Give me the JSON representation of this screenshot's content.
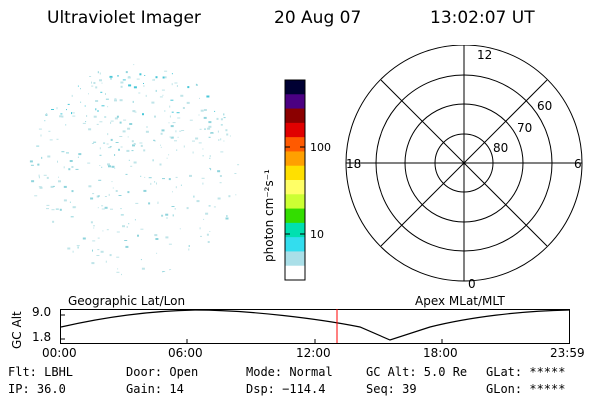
{
  "header": {
    "instrument": "Ultraviolet Imager",
    "date": "20 Aug 07",
    "time": "13:02:07 UT"
  },
  "colorbar": {
    "label": "photon cm⁻²s⁻¹",
    "tick_labels": [
      "100",
      "10"
    ],
    "colors": [
      "#000033",
      "#4b0082",
      "#8b0000",
      "#e00000",
      "#ff5a00",
      "#ffa000",
      "#ffe000",
      "#ffff66",
      "#ccff33",
      "#33dd00",
      "#00e0b0",
      "#33ddee",
      "#aadfe8",
      "#ffffff"
    ]
  },
  "polar_grid": {
    "mlt_labels": [
      "12",
      "18",
      "6",
      "0"
    ],
    "mlat_labels": [
      "60",
      "70",
      "80"
    ]
  },
  "timeline": {
    "left_label": "Geographic Lat/Lon",
    "right_label": "Apex MLat/MLT",
    "y_axis_title": "GC Alt",
    "y_ticks": [
      "9.0",
      "1.8"
    ],
    "x_ticks": [
      "00:00",
      "06:00",
      "12:00",
      "18:00",
      "23:59"
    ],
    "current_marker_color": "#ff0000"
  },
  "status": {
    "flt": "Flt: LBHL",
    "ip": "IP: 36.0",
    "door": "Door: Open",
    "gain": "Gain: 14",
    "mode": "Mode: Normal",
    "dsp": "Dsp: −114.4",
    "gc_alt": "GC Alt: 5.0 Re",
    "seq": "Seq: 39",
    "glat": "GLat: *****",
    "glon": "GLon: *****"
  },
  "colors": {
    "speckle_light": "#bfe4e8",
    "speckle_mid": "#8fd4dc",
    "speckle_cyan": "#49c7d8"
  }
}
